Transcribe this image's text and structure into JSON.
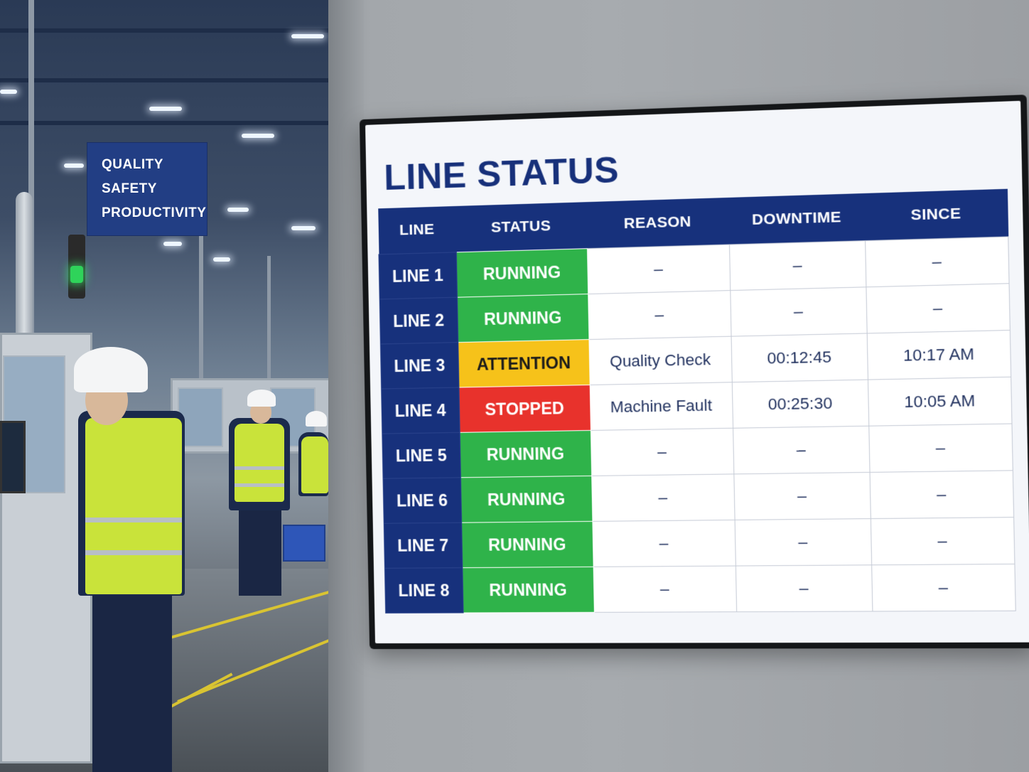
{
  "sign": {
    "lines": [
      "QUALITY",
      "SAFETY",
      "PRODUCTIVITY"
    ]
  },
  "board": {
    "title": "LINE STATUS",
    "columns": [
      "LINE",
      "STATUS",
      "REASON",
      "DOWNTIME",
      "SINCE"
    ],
    "rows": [
      {
        "line": "LINE 1",
        "status": "RUNNING",
        "status_color": "#2fb34a",
        "status_text_color": "#ffffff",
        "reason": "–",
        "downtime": "–",
        "since": "–"
      },
      {
        "line": "LINE 2",
        "status": "RUNNING",
        "status_color": "#2fb34a",
        "status_text_color": "#ffffff",
        "reason": "–",
        "downtime": "–",
        "since": "–"
      },
      {
        "line": "LINE 3",
        "status": "ATTENTION",
        "status_color": "#f6c21a",
        "status_text_color": "#1b1b1b",
        "reason": "Quality Check",
        "downtime": "00:12:45",
        "since": "10:17 AM"
      },
      {
        "line": "LINE 4",
        "status": "STOPPED",
        "status_color": "#e8322c",
        "status_text_color": "#ffffff",
        "reason": "Machine Fault",
        "downtime": "00:25:30",
        "since": "10:05 AM"
      },
      {
        "line": "LINE 5",
        "status": "RUNNING",
        "status_color": "#2fb34a",
        "status_text_color": "#ffffff",
        "reason": "–",
        "downtime": "–",
        "since": "–"
      },
      {
        "line": "LINE 6",
        "status": "RUNNING",
        "status_color": "#2fb34a",
        "status_text_color": "#ffffff",
        "reason": "–",
        "downtime": "–",
        "since": "–"
      },
      {
        "line": "LINE 7",
        "status": "RUNNING",
        "status_color": "#2fb34a",
        "status_text_color": "#ffffff",
        "reason": "–",
        "downtime": "–",
        "since": "–"
      },
      {
        "line": "LINE 8",
        "status": "RUNNING",
        "status_color": "#2fb34a",
        "status_text_color": "#ffffff",
        "reason": "–",
        "downtime": "–",
        "since": "–"
      }
    ]
  },
  "colors": {
    "header_navy": "#17317c",
    "running": "#2fb34a",
    "attention": "#f6c21a",
    "stopped": "#e8322c"
  },
  "icons": {
    "stack_light": "green-stack-light-icon"
  }
}
